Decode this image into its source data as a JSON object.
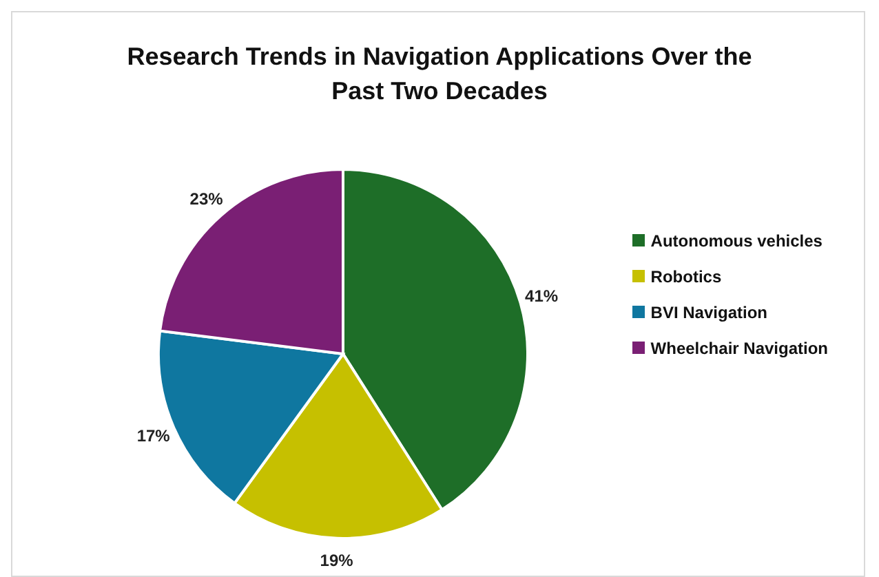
{
  "chart_data": {
    "type": "pie",
    "title": "Research Trends in Navigation Applications Over the Past Two Decades",
    "categories": [
      "Autonomous vehicles",
      "Robotics",
      "BVI Navigation",
      "Wheelchair Navigation"
    ],
    "values": [
      41,
      19,
      17,
      23
    ],
    "value_labels": [
      "41%",
      "19%",
      "17%",
      "23%"
    ],
    "colors": [
      "#1e6e28",
      "#c6c000",
      "#0f77a0",
      "#7a1f74"
    ],
    "legend": "right"
  }
}
